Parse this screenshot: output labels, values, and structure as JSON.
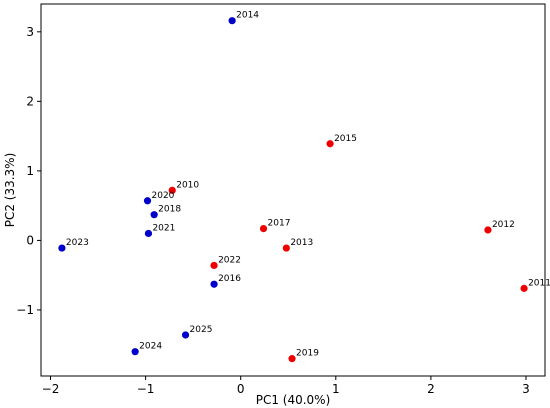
{
  "chart_data": {
    "type": "scatter",
    "title": "",
    "xlabel": "PC1 (40.0%)",
    "ylabel": "PC2 (33.3%)",
    "xlim": [
      -2.1,
      3.2
    ],
    "ylim": [
      -1.95,
      3.4
    ],
    "xticks": [
      -2,
      -1,
      0,
      1,
      2,
      3
    ],
    "yticks": [
      -1,
      0,
      1,
      2,
      3
    ],
    "xtick_labels": [
      "−2",
      "−1",
      "0",
      "1",
      "2",
      "3"
    ],
    "ytick_labels": [
      "−1",
      "0",
      "1",
      "2",
      "3"
    ],
    "grid": false,
    "legend": "none",
    "colors": {
      "red": "#ee0000",
      "blue": "#0000cc"
    },
    "points": [
      {
        "label": "2010",
        "x": -0.72,
        "y": 0.72,
        "color": "red"
      },
      {
        "label": "2011",
        "x": 2.98,
        "y": -0.69,
        "color": "red"
      },
      {
        "label": "2012",
        "x": 2.6,
        "y": 0.15,
        "color": "red"
      },
      {
        "label": "2013",
        "x": 0.48,
        "y": -0.11,
        "color": "red"
      },
      {
        "label": "2014",
        "x": -0.09,
        "y": 3.16,
        "color": "blue"
      },
      {
        "label": "2015",
        "x": 0.94,
        "y": 1.39,
        "color": "red"
      },
      {
        "label": "2016",
        "x": -0.28,
        "y": -0.63,
        "color": "blue"
      },
      {
        "label": "2017",
        "x": 0.24,
        "y": 0.17,
        "color": "red"
      },
      {
        "label": "2018",
        "x": -0.91,
        "y": 0.37,
        "color": "blue"
      },
      {
        "label": "2019",
        "x": 0.54,
        "y": -1.7,
        "color": "red"
      },
      {
        "label": "2020",
        "x": -0.98,
        "y": 0.57,
        "color": "blue"
      },
      {
        "label": "2021",
        "x": -0.97,
        "y": 0.1,
        "color": "blue"
      },
      {
        "label": "2022",
        "x": -0.28,
        "y": -0.36,
        "color": "red"
      },
      {
        "label": "2023",
        "x": -1.88,
        "y": -0.11,
        "color": "blue"
      },
      {
        "label": "2024",
        "x": -1.11,
        "y": -1.6,
        "color": "blue"
      },
      {
        "label": "2025",
        "x": -0.58,
        "y": -1.36,
        "color": "blue"
      }
    ]
  }
}
